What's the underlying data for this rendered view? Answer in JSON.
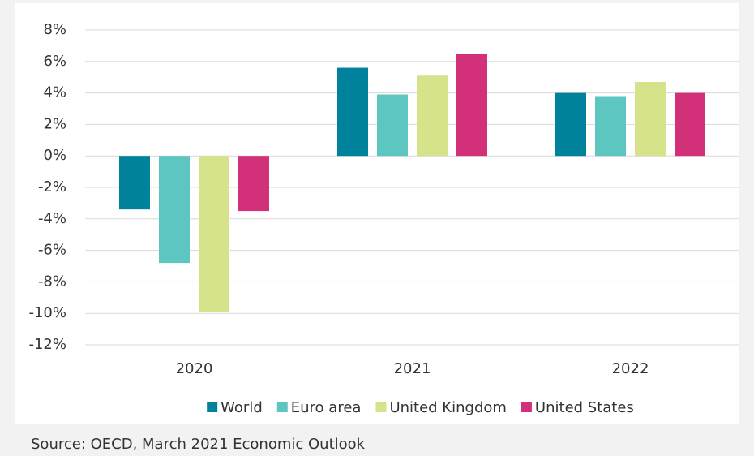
{
  "chart_data": {
    "type": "bar",
    "categories": [
      "2020",
      "2021",
      "2022"
    ],
    "series": [
      {
        "name": "World",
        "color": "#00819c",
        "values": [
          -3.4,
          5.6,
          4.0
        ]
      },
      {
        "name": "Euro area",
        "color": "#5ec6c1",
        "values": [
          -6.8,
          3.9,
          3.8
        ]
      },
      {
        "name": "United Kingdom",
        "color": "#d6e38a",
        "values": [
          -9.9,
          5.1,
          4.7
        ]
      },
      {
        "name": "United States",
        "color": "#d23079",
        "values": [
          -3.5,
          6.5,
          4.0
        ]
      }
    ],
    "ylim": [
      -12,
      8
    ],
    "yticks": [
      {
        "value": 8,
        "label": "8%"
      },
      {
        "value": 6,
        "label": "6%"
      },
      {
        "value": 4,
        "label": "4%"
      },
      {
        "value": 2,
        "label": "2%"
      },
      {
        "value": 0,
        "label": "0%"
      },
      {
        "value": -2,
        "label": "-2%"
      },
      {
        "value": -4,
        "label": "-4%"
      },
      {
        "value": -6,
        "label": "-6%"
      },
      {
        "value": -8,
        "label": "-8%"
      },
      {
        "value": -10,
        "label": "-10%"
      },
      {
        "value": -12,
        "label": "-12%"
      }
    ],
    "grid": true,
    "legend": "bottom",
    "source": "Source: OECD, March 2021 Economic Outlook"
  }
}
